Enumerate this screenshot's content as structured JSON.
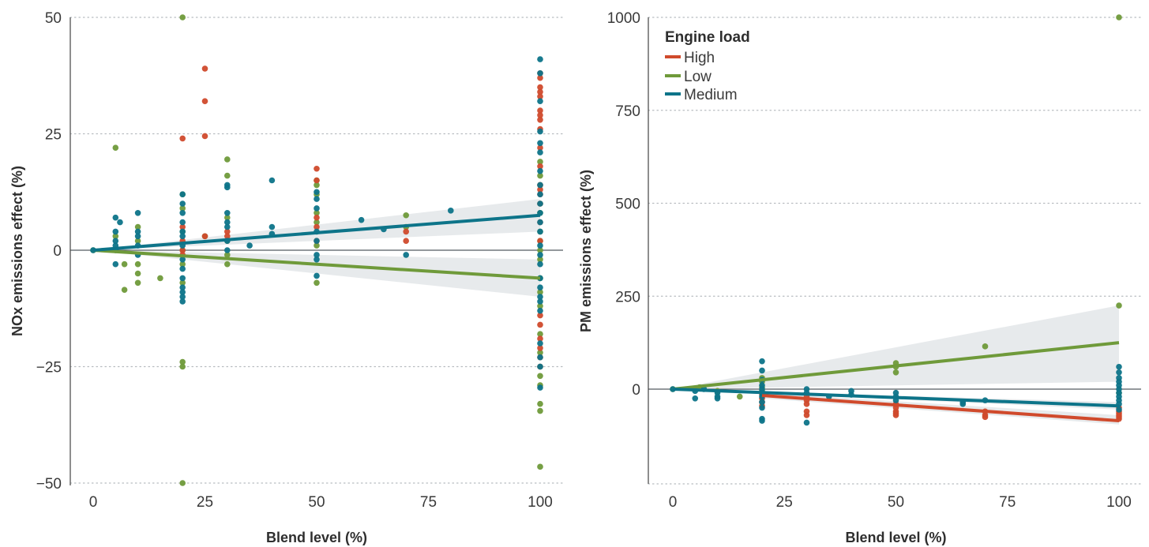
{
  "colors": {
    "High": "#d04a2c",
    "Low": "#6f9a3a",
    "Medium": "#0d7489",
    "band": "#e3e6e9",
    "grid": "#b8bcc0",
    "zero": "#555b60",
    "axis": "#444444"
  },
  "legend": {
    "title": "Engine load",
    "items": [
      "High",
      "Low",
      "Medium"
    ],
    "placement": "top-left of right panel"
  },
  "chart_data": [
    {
      "type": "scatter",
      "xlabel": "Blend level (%)",
      "ylabel": "NOx emissions effect (%)",
      "xlim": [
        -5,
        105
      ],
      "ylim": [
        -50,
        50
      ],
      "xticks": [
        0,
        25,
        50,
        75,
        100
      ],
      "yticks": [
        50,
        25,
        0,
        -25,
        -50
      ],
      "ytick_labels": [
        "50",
        "25",
        "0",
        "−25",
        "−50"
      ],
      "grid": "horizontal dotted",
      "series": [
        {
          "name": "High",
          "points": [
            [
              20,
              24
            ],
            [
              20,
              5
            ],
            [
              20,
              2
            ],
            [
              20,
              0
            ],
            [
              20,
              -1
            ],
            [
              25,
              39
            ],
            [
              25,
              32
            ],
            [
              25,
              24.5
            ],
            [
              25,
              3
            ],
            [
              30,
              4
            ],
            [
              30,
              3
            ],
            [
              50,
              17.5
            ],
            [
              50,
              15
            ],
            [
              50,
              7
            ],
            [
              50,
              5
            ],
            [
              50,
              2
            ],
            [
              70,
              2
            ],
            [
              70,
              4
            ],
            [
              100,
              38
            ],
            [
              100,
              37
            ],
            [
              100,
              35
            ],
            [
              100,
              34
            ],
            [
              100,
              33
            ],
            [
              100,
              30
            ],
            [
              100,
              29
            ],
            [
              100,
              28
            ],
            [
              100,
              26
            ],
            [
              100,
              22
            ],
            [
              100,
              18
            ],
            [
              100,
              14
            ],
            [
              100,
              13
            ],
            [
              100,
              12
            ],
            [
              100,
              10
            ],
            [
              100,
              6
            ],
            [
              100,
              2
            ],
            [
              100,
              -14
            ],
            [
              100,
              -16
            ],
            [
              100,
              -19
            ],
            [
              100,
              -21
            ],
            [
              100,
              -23
            ],
            [
              100,
              -25
            ]
          ],
          "trend": null
        },
        {
          "name": "Low",
          "points": [
            [
              0,
              0
            ],
            [
              5,
              22
            ],
            [
              5,
              3
            ],
            [
              5,
              0
            ],
            [
              7,
              -3
            ],
            [
              7,
              -8.5
            ],
            [
              10,
              5
            ],
            [
              10,
              2
            ],
            [
              10,
              -3
            ],
            [
              10,
              -5
            ],
            [
              10,
              -7
            ],
            [
              15,
              -6
            ],
            [
              20,
              50
            ],
            [
              20,
              12
            ],
            [
              20,
              9
            ],
            [
              20,
              4
            ],
            [
              20,
              0
            ],
            [
              20,
              -3
            ],
            [
              20,
              -7
            ],
            [
              20,
              -24
            ],
            [
              20,
              -25
            ],
            [
              20,
              -50
            ],
            [
              25,
              3
            ],
            [
              30,
              19.5
            ],
            [
              30,
              16
            ],
            [
              30,
              7
            ],
            [
              30,
              2
            ],
            [
              30,
              -1
            ],
            [
              30,
              -3
            ],
            [
              50,
              15
            ],
            [
              50,
              14
            ],
            [
              50,
              12
            ],
            [
              50,
              8
            ],
            [
              50,
              6
            ],
            [
              50,
              1
            ],
            [
              50,
              -7
            ],
            [
              70,
              7.5
            ],
            [
              70,
              5
            ],
            [
              100,
              19
            ],
            [
              100,
              16
            ],
            [
              100,
              14
            ],
            [
              100,
              10
            ],
            [
              100,
              8
            ],
            [
              100,
              4
            ],
            [
              100,
              2
            ],
            [
              100,
              0
            ],
            [
              100,
              -2
            ],
            [
              100,
              -6
            ],
            [
              100,
              -9
            ],
            [
              100,
              -12
            ],
            [
              100,
              -18
            ],
            [
              100,
              -22
            ],
            [
              100,
              -25
            ],
            [
              100,
              -27
            ],
            [
              100,
              -29
            ],
            [
              100,
              -33
            ],
            [
              100,
              -34.5
            ],
            [
              100,
              -46.5
            ]
          ],
          "trend": {
            "x": [
              0,
              100
            ],
            "y": [
              0,
              -6
            ],
            "band_lower": [
              0,
              -10
            ],
            "band_upper": [
              0,
              -2
            ]
          }
        },
        {
          "name": "Medium",
          "points": [
            [
              0,
              0
            ],
            [
              5,
              7
            ],
            [
              5,
              4
            ],
            [
              5,
              2
            ],
            [
              5,
              1
            ],
            [
              5,
              0
            ],
            [
              5,
              -3
            ],
            [
              6,
              6
            ],
            [
              10,
              8
            ],
            [
              10,
              4
            ],
            [
              10,
              3
            ],
            [
              10,
              1
            ],
            [
              10,
              -1
            ],
            [
              20,
              12
            ],
            [
              20,
              10
            ],
            [
              20,
              8
            ],
            [
              20,
              6
            ],
            [
              20,
              4
            ],
            [
              20,
              3
            ],
            [
              20,
              1
            ],
            [
              20,
              -2
            ],
            [
              20,
              -4
            ],
            [
              20,
              -6
            ],
            [
              20,
              -8
            ],
            [
              20,
              -9
            ],
            [
              20,
              -10
            ],
            [
              20,
              -11
            ],
            [
              30,
              14
            ],
            [
              30,
              13.5
            ],
            [
              30,
              8
            ],
            [
              30,
              6
            ],
            [
              30,
              5
            ],
            [
              30,
              2
            ],
            [
              30,
              0
            ],
            [
              35,
              1
            ],
            [
              40,
              15
            ],
            [
              40,
              5
            ],
            [
              40,
              3.5
            ],
            [
              50,
              12.5
            ],
            [
              50,
              11
            ],
            [
              50,
              9
            ],
            [
              50,
              4
            ],
            [
              50,
              2
            ],
            [
              50,
              -1
            ],
            [
              50,
              -2
            ],
            [
              50,
              -5.5
            ],
            [
              60,
              6.5
            ],
            [
              65,
              4.5
            ],
            [
              70,
              -1
            ],
            [
              80,
              8.5
            ],
            [
              100,
              41
            ],
            [
              100,
              38
            ],
            [
              100,
              32
            ],
            [
              100,
              25.5
            ],
            [
              100,
              23
            ],
            [
              100,
              21
            ],
            [
              100,
              17
            ],
            [
              100,
              14
            ],
            [
              100,
              12
            ],
            [
              100,
              10
            ],
            [
              100,
              8
            ],
            [
              100,
              6
            ],
            [
              100,
              4
            ],
            [
              100,
              1
            ],
            [
              100,
              -1
            ],
            [
              100,
              -3
            ],
            [
              100,
              -6
            ],
            [
              100,
              -8
            ],
            [
              100,
              -10
            ],
            [
              100,
              -11
            ],
            [
              100,
              -13
            ],
            [
              100,
              -20
            ],
            [
              100,
              -23
            ],
            [
              100,
              -25
            ],
            [
              100,
              -29.5
            ]
          ],
          "trend": {
            "x": [
              0,
              100
            ],
            "y": [
              0,
              7.5
            ],
            "band_lower": [
              0,
              4
            ],
            "band_upper": [
              0,
              11
            ]
          }
        }
      ]
    },
    {
      "type": "scatter",
      "xlabel": "Blend level (%)",
      "ylabel": "PM emissions effect (%)",
      "xlim": [
        -5,
        105
      ],
      "ylim": [
        -250,
        1000
      ],
      "xticks": [
        0,
        25,
        50,
        75,
        100
      ],
      "yticks": [
        1000,
        750,
        500,
        250,
        0
      ],
      "ytick_labels": [
        "1000",
        "750",
        "500",
        "250",
        "0"
      ],
      "grid": "horizontal dotted",
      "series": [
        {
          "name": "High",
          "points": [
            [
              20,
              -15
            ],
            [
              20,
              -25
            ],
            [
              20,
              -35
            ],
            [
              20,
              -45
            ],
            [
              30,
              -20
            ],
            [
              30,
              -30
            ],
            [
              30,
              -40
            ],
            [
              30,
              -60
            ],
            [
              30,
              -70
            ],
            [
              50,
              -40
            ],
            [
              50,
              -50
            ],
            [
              50,
              -60
            ],
            [
              50,
              -65
            ],
            [
              50,
              -70
            ],
            [
              70,
              -60
            ],
            [
              70,
              -70
            ],
            [
              70,
              -75
            ],
            [
              100,
              -50
            ],
            [
              100,
              -60
            ],
            [
              100,
              -65
            ],
            [
              100,
              -70
            ],
            [
              100,
              -75
            ],
            [
              100,
              -80
            ]
          ],
          "trend": {
            "x": [
              20,
              100
            ],
            "y": [
              -17,
              -85
            ],
            "band_lower": [
              -25,
              -95
            ],
            "band_upper": [
              -10,
              -70
            ]
          }
        },
        {
          "name": "Low",
          "points": [
            [
              0,
              0
            ],
            [
              5,
              2
            ],
            [
              6,
              5
            ],
            [
              10,
              -5
            ],
            [
              15,
              -20
            ],
            [
              20,
              30
            ],
            [
              20,
              20
            ],
            [
              20,
              5
            ],
            [
              20,
              -5
            ],
            [
              50,
              70
            ],
            [
              50,
              60
            ],
            [
              50,
              45
            ],
            [
              70,
              115
            ],
            [
              100,
              1000
            ],
            [
              100,
              225
            ],
            [
              100,
              -10
            ]
          ],
          "trend": {
            "x": [
              0,
              100
            ],
            "y": [
              0,
              125
            ],
            "band_lower": [
              0,
              20
            ],
            "band_upper": [
              0,
              225
            ]
          }
        },
        {
          "name": "Medium",
          "points": [
            [
              0,
              0
            ],
            [
              5,
              -5
            ],
            [
              5,
              -25
            ],
            [
              7,
              0
            ],
            [
              10,
              -10
            ],
            [
              10,
              -20
            ],
            [
              10,
              -25
            ],
            [
              20,
              75
            ],
            [
              20,
              50
            ],
            [
              20,
              25
            ],
            [
              20,
              10
            ],
            [
              20,
              0
            ],
            [
              20,
              -10
            ],
            [
              20,
              -20
            ],
            [
              20,
              -35
            ],
            [
              20,
              -50
            ],
            [
              20,
              -80
            ],
            [
              20,
              -85
            ],
            [
              30,
              0
            ],
            [
              30,
              -10
            ],
            [
              30,
              -90
            ],
            [
              35,
              -20
            ],
            [
              40,
              -5
            ],
            [
              40,
              -15
            ],
            [
              50,
              -10
            ],
            [
              50,
              -20
            ],
            [
              50,
              -30
            ],
            [
              65,
              -35
            ],
            [
              65,
              -40
            ],
            [
              70,
              -30
            ],
            [
              100,
              60
            ],
            [
              100,
              45
            ],
            [
              100,
              30
            ],
            [
              100,
              20
            ],
            [
              100,
              10
            ],
            [
              100,
              0
            ],
            [
              100,
              -10
            ],
            [
              100,
              -20
            ],
            [
              100,
              -30
            ],
            [
              100,
              -40
            ],
            [
              100,
              -55
            ]
          ],
          "trend": {
            "x": [
              0,
              100
            ],
            "y": [
              0,
              -45
            ],
            "band_lower": [
              0,
              -55
            ],
            "band_upper": [
              0,
              -35
            ]
          }
        }
      ]
    }
  ]
}
